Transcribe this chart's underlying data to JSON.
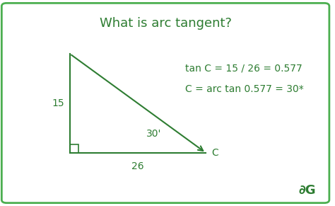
{
  "title": "What is arc tangent?",
  "title_color": "#2e7d32",
  "title_fontsize": 13,
  "bg_color": "#ffffff",
  "border_color": "#4caf50",
  "triangle_color": "#2e7d32",
  "text_color": "#2e7d32",
  "formula1": "tan C = 15 / 26 = 0.577",
  "formula2": "C = arc tan 0.577 = 30*",
  "font_size_labels": 10,
  "font_size_formula": 10,
  "font_size_logo": 13
}
